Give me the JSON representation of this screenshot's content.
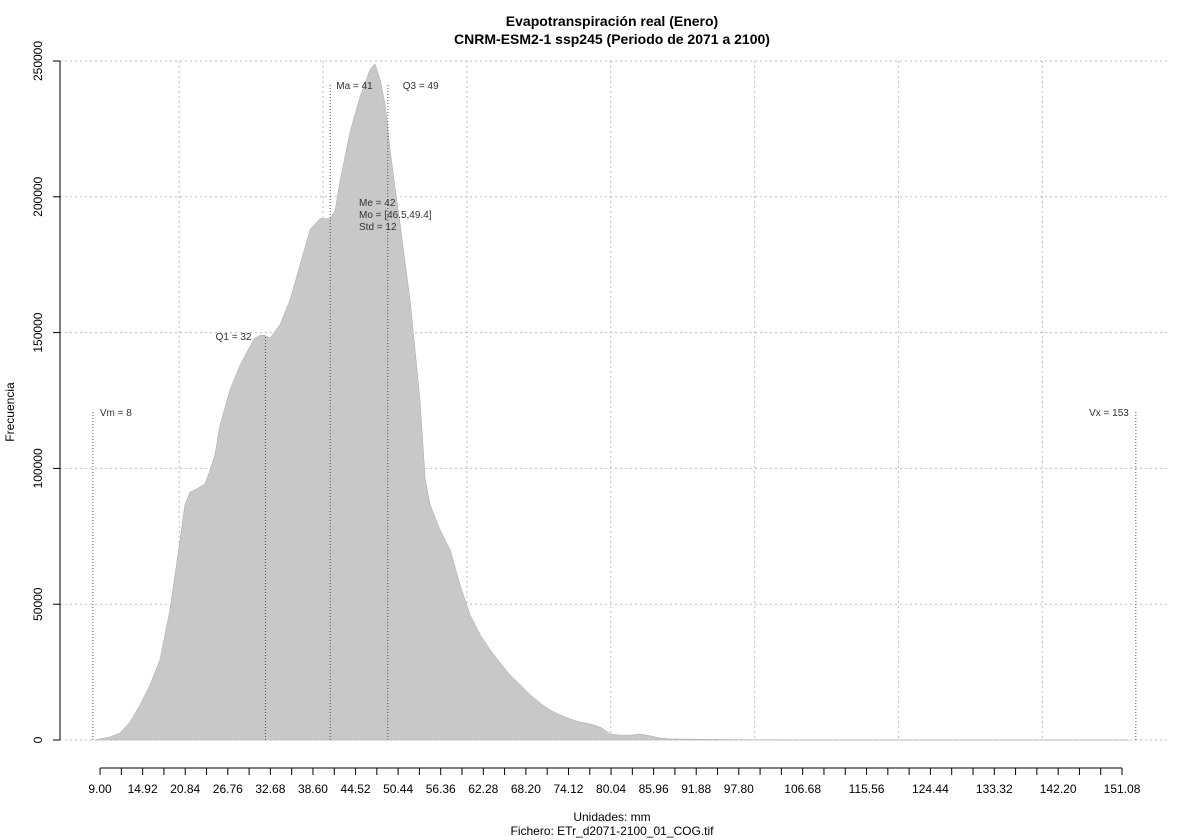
{
  "chart_data": {
    "type": "area",
    "title": "Evapotranspiración real (Enero)",
    "subtitle": "CNRM-ESM2-1 ssp245 (Periodo de 2071 a 2100)",
    "xlabel": "Unidades: mm",
    "caption": "Fichero: ETr_d2071-2100_01_COG.tif",
    "ylabel": "Frecuencia",
    "color": "#c8c8c8",
    "grid": true,
    "xlim": [
      3.43,
      157.75
    ],
    "ylim": [
      0,
      250000
    ],
    "yticks": [
      0,
      50000,
      100000,
      150000,
      200000,
      250000
    ],
    "xgrid": [
      20,
      40,
      60,
      80,
      100,
      120,
      140
    ],
    "xticks": [
      {
        "value": 9,
        "label": "9.00"
      },
      {
        "value": 14.92,
        "label": "14.92"
      },
      {
        "value": 20.84,
        "label": "20.84"
      },
      {
        "value": 26.76,
        "label": "26.76"
      },
      {
        "value": 32.68,
        "label": "32.68"
      },
      {
        "value": 38.6,
        "label": "38.60"
      },
      {
        "value": 44.52,
        "label": "44.52"
      },
      {
        "value": 50.44,
        "label": "50.44"
      },
      {
        "value": 56.36,
        "label": "56.36"
      },
      {
        "value": 62.28,
        "label": "62.28"
      },
      {
        "value": 68.2,
        "label": "68.20"
      },
      {
        "value": 74.12,
        "label": "74.12"
      },
      {
        "value": 80.04,
        "label": "80.04"
      },
      {
        "value": 85.96,
        "label": "85.96"
      },
      {
        "value": 91.88,
        "label": "91.88"
      },
      {
        "value": 97.8,
        "label": "97.80"
      },
      {
        "value": 106.68,
        "label": "106.68"
      },
      {
        "value": 115.56,
        "label": "115.56"
      },
      {
        "value": 124.44,
        "label": "124.44"
      },
      {
        "value": 133.32,
        "label": "133.32"
      },
      {
        "value": 142.2,
        "label": "142.20"
      },
      {
        "value": 151.08,
        "label": "151.08"
      }
    ],
    "xminor_ticks": [
      11.96,
      17.88,
      23.8,
      29.72,
      35.64,
      41.56,
      47.48,
      53.4,
      59.32,
      65.24,
      71.16,
      77.08,
      83,
      88.92,
      94.84,
      100.76,
      103.72,
      109.64,
      112.6,
      118.52,
      121.48,
      127.4,
      130.36,
      136.28,
      139.24,
      145.16,
      148.12
    ],
    "x": [
      8.28,
      8.97,
      10.36,
      11.76,
      13.15,
      14.54,
      15.93,
      17.32,
      18.71,
      20.11,
      20.8,
      21.5,
      22.19,
      23.58,
      24.28,
      24.97,
      25.67,
      27.06,
      28.45,
      29.85,
      30.54,
      31.24,
      31.93,
      32.63,
      34.02,
      35.41,
      36.8,
      38.2,
      39.59,
      40.98,
      41.68,
      42.37,
      43.76,
      45.16,
      46.55,
      47.24,
      47.94,
      48.64,
      49.33,
      50.03,
      50.72,
      52.11,
      53.5,
      54.2,
      54.9,
      56.29,
      57.68,
      59.07,
      60.46,
      61.86,
      63.25,
      64.64,
      66.03,
      67.42,
      68.81,
      70.21,
      71.6,
      72.99,
      74.38,
      75.77,
      77.17,
      78.56,
      79.95,
      81.34,
      82.74,
      84.13,
      85.52,
      86.91,
      88.31,
      95.26,
      99.44,
      106.4,
      152
    ],
    "values": [
      0,
      400,
      1100,
      2600,
      6600,
      12900,
      20200,
      29500,
      47900,
      73600,
      86600,
      91300,
      92100,
      94300,
      99400,
      105000,
      116000,
      129000,
      138000,
      145000,
      148000,
      149000,
      149000,
      148000,
      153000,
      162000,
      175000,
      188000,
      192000,
      192000,
      195000,
      206000,
      224000,
      237000,
      247000,
      249000,
      243000,
      234000,
      217000,
      203000,
      190000,
      162000,
      125000,
      96000,
      86600,
      77300,
      70000,
      57000,
      46000,
      38700,
      33100,
      28400,
      23900,
      20300,
      16600,
      13600,
      11000,
      9200,
      7700,
      6600,
      5900,
      4800,
      2200,
      1800,
      1800,
      2200,
      1500,
      700,
      400,
      200,
      100,
      0,
      0
    ],
    "markers": [
      {
        "label": "Vm = 8",
        "value": 8
      },
      {
        "label": "Q1 = 32",
        "value": 32
      },
      {
        "label": "Ma = 41",
        "value": 41
      },
      {
        "label": "Q3 = 49",
        "value": 49
      },
      {
        "label": "Vx = 153",
        "value": 153
      }
    ],
    "notes": [
      "Me = 42",
      "Mo = [46.5,49.4]",
      "Std = 12"
    ]
  }
}
